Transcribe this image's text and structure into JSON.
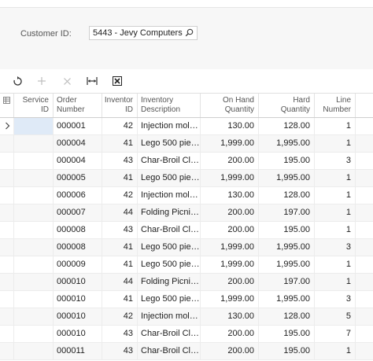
{
  "filter": {
    "customer_label": "Customer ID:",
    "customer_value": "5443 - Jevy Computers"
  },
  "toolbar": {
    "icons": [
      "refresh-icon",
      "add-icon",
      "delete-icon",
      "fit-columns-icon",
      "export-excel-icon"
    ]
  },
  "grid": {
    "headers": {
      "service_id": [
        "Service",
        "ID"
      ],
      "order_number": [
        "Order",
        "Number"
      ],
      "inventory_id": [
        "Inventor",
        "ID"
      ],
      "inventory_description": [
        "Inventory",
        "Description"
      ],
      "on_hand_qty": [
        "On Hand",
        "Quantity"
      ],
      "hard_qty": [
        "Hard",
        "Quantity"
      ],
      "line_number": [
        "Line",
        "Number"
      ]
    },
    "rows": [
      {
        "service_id": "",
        "order": "000001",
        "inv": "42",
        "desc": "Injection mold…",
        "onhand": "130.00",
        "hard": "128.00",
        "line": "1"
      },
      {
        "service_id": "",
        "order": "000004",
        "inv": "41",
        "desc": "Lego 500 piec…",
        "onhand": "1,999.00",
        "hard": "1,995.00",
        "line": "1"
      },
      {
        "service_id": "",
        "order": "000004",
        "inv": "43",
        "desc": "Char-Broil Cla…",
        "onhand": "200.00",
        "hard": "195.00",
        "line": "3"
      },
      {
        "service_id": "",
        "order": "000005",
        "inv": "41",
        "desc": "Lego 500 piec…",
        "onhand": "1,999.00",
        "hard": "1,995.00",
        "line": "1"
      },
      {
        "service_id": "",
        "order": "000006",
        "inv": "42",
        "desc": "Injection mold…",
        "onhand": "130.00",
        "hard": "128.00",
        "line": "1"
      },
      {
        "service_id": "",
        "order": "000007",
        "inv": "44",
        "desc": "Folding Picnic…",
        "onhand": "200.00",
        "hard": "197.00",
        "line": "1"
      },
      {
        "service_id": "",
        "order": "000008",
        "inv": "43",
        "desc": "Char-Broil Cla…",
        "onhand": "200.00",
        "hard": "195.00",
        "line": "1"
      },
      {
        "service_id": "",
        "order": "000008",
        "inv": "41",
        "desc": "Lego 500 piec…",
        "onhand": "1,999.00",
        "hard": "1,995.00",
        "line": "3"
      },
      {
        "service_id": "",
        "order": "000009",
        "inv": "41",
        "desc": "Lego 500 piec…",
        "onhand": "1,999.00",
        "hard": "1,995.00",
        "line": "1"
      },
      {
        "service_id": "",
        "order": "000010",
        "inv": "44",
        "desc": "Folding Picnic…",
        "onhand": "200.00",
        "hard": "197.00",
        "line": "1"
      },
      {
        "service_id": "",
        "order": "000010",
        "inv": "41",
        "desc": "Lego 500 piec…",
        "onhand": "1,999.00",
        "hard": "1,995.00",
        "line": "3"
      },
      {
        "service_id": "",
        "order": "000010",
        "inv": "42",
        "desc": "Injection mold…",
        "onhand": "130.00",
        "hard": "128.00",
        "line": "5"
      },
      {
        "service_id": "",
        "order": "000010",
        "inv": "43",
        "desc": "Char-Broil Cla…",
        "onhand": "200.00",
        "hard": "195.00",
        "line": "7"
      },
      {
        "service_id": "",
        "order": "000011",
        "inv": "43",
        "desc": "Char-Broil Cla…",
        "onhand": "200.00",
        "hard": "195.00",
        "line": "1"
      }
    ]
  }
}
